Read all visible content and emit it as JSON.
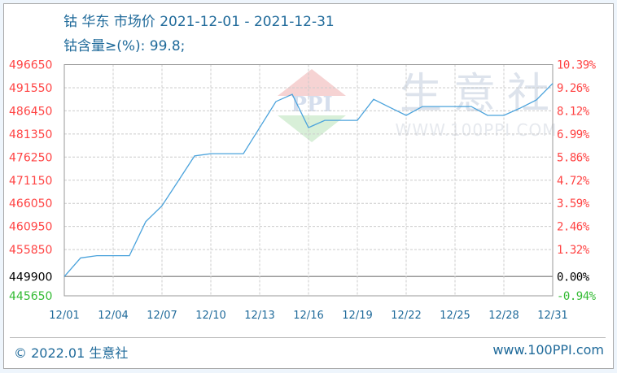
{
  "header": {
    "title": "钴 华东 市场价 2021-12-01 - 2021-12-31",
    "subtitle": "钴含量≥(%): 99.8;"
  },
  "footer": {
    "copyright": "© 2022.01 生意社",
    "site": "www.100PPI.com"
  },
  "watermark": {
    "text": "生意社",
    "url": "WWW.100PPI.COM",
    "logo": "PPI"
  },
  "colors": {
    "line": "#4ba3dc",
    "up": "#ff4444",
    "down": "#33bb33",
    "base": "#000000",
    "text": "#1f6a9a"
  },
  "chart_data": {
    "type": "line",
    "title": "钴 华东 市场价 2021-12-01 - 2021-12-31",
    "x": [
      "12/01",
      "12/02",
      "12/03",
      "12/04",
      "12/05",
      "12/06",
      "12/07",
      "12/08",
      "12/09",
      "12/10",
      "12/11",
      "12/12",
      "12/13",
      "12/14",
      "12/15",
      "12/16",
      "12/17",
      "12/18",
      "12/19",
      "12/20",
      "12/21",
      "12/22",
      "12/23",
      "12/24",
      "12/25",
      "12/26",
      "12/27",
      "12/28",
      "12/29",
      "12/30",
      "12/31"
    ],
    "series": [
      {
        "values": [
          449900,
          454000,
          454500,
          454500,
          454500,
          462000,
          465500,
          471000,
          476500,
          477000,
          477000,
          477000,
          482750,
          488500,
          490100,
          482750,
          484350,
          484350,
          484350,
          489000,
          487200,
          485450,
          487400,
          487400,
          487400,
          487400,
          485450,
          485450,
          487050,
          488850,
          492500
        ]
      }
    ],
    "xticks": [
      "12/01",
      "12/04",
      "12/07",
      "12/10",
      "12/13",
      "12/16",
      "12/19",
      "12/22",
      "12/25",
      "12/28",
      "12/31"
    ],
    "yticks_left": [
      "496650",
      "491550",
      "486450",
      "481350",
      "476250",
      "471150",
      "466050",
      "460950",
      "455850",
      "449900",
      "445650"
    ],
    "yticks_right": [
      "10.39%",
      "9.26%",
      "8.12%",
      "6.99%",
      "5.86%",
      "4.72%",
      "3.59%",
      "2.46%",
      "1.32%",
      "0.00%",
      "-0.94%"
    ],
    "ylim": [
      445650,
      496650
    ],
    "baseline": 449900,
    "grid": true
  }
}
